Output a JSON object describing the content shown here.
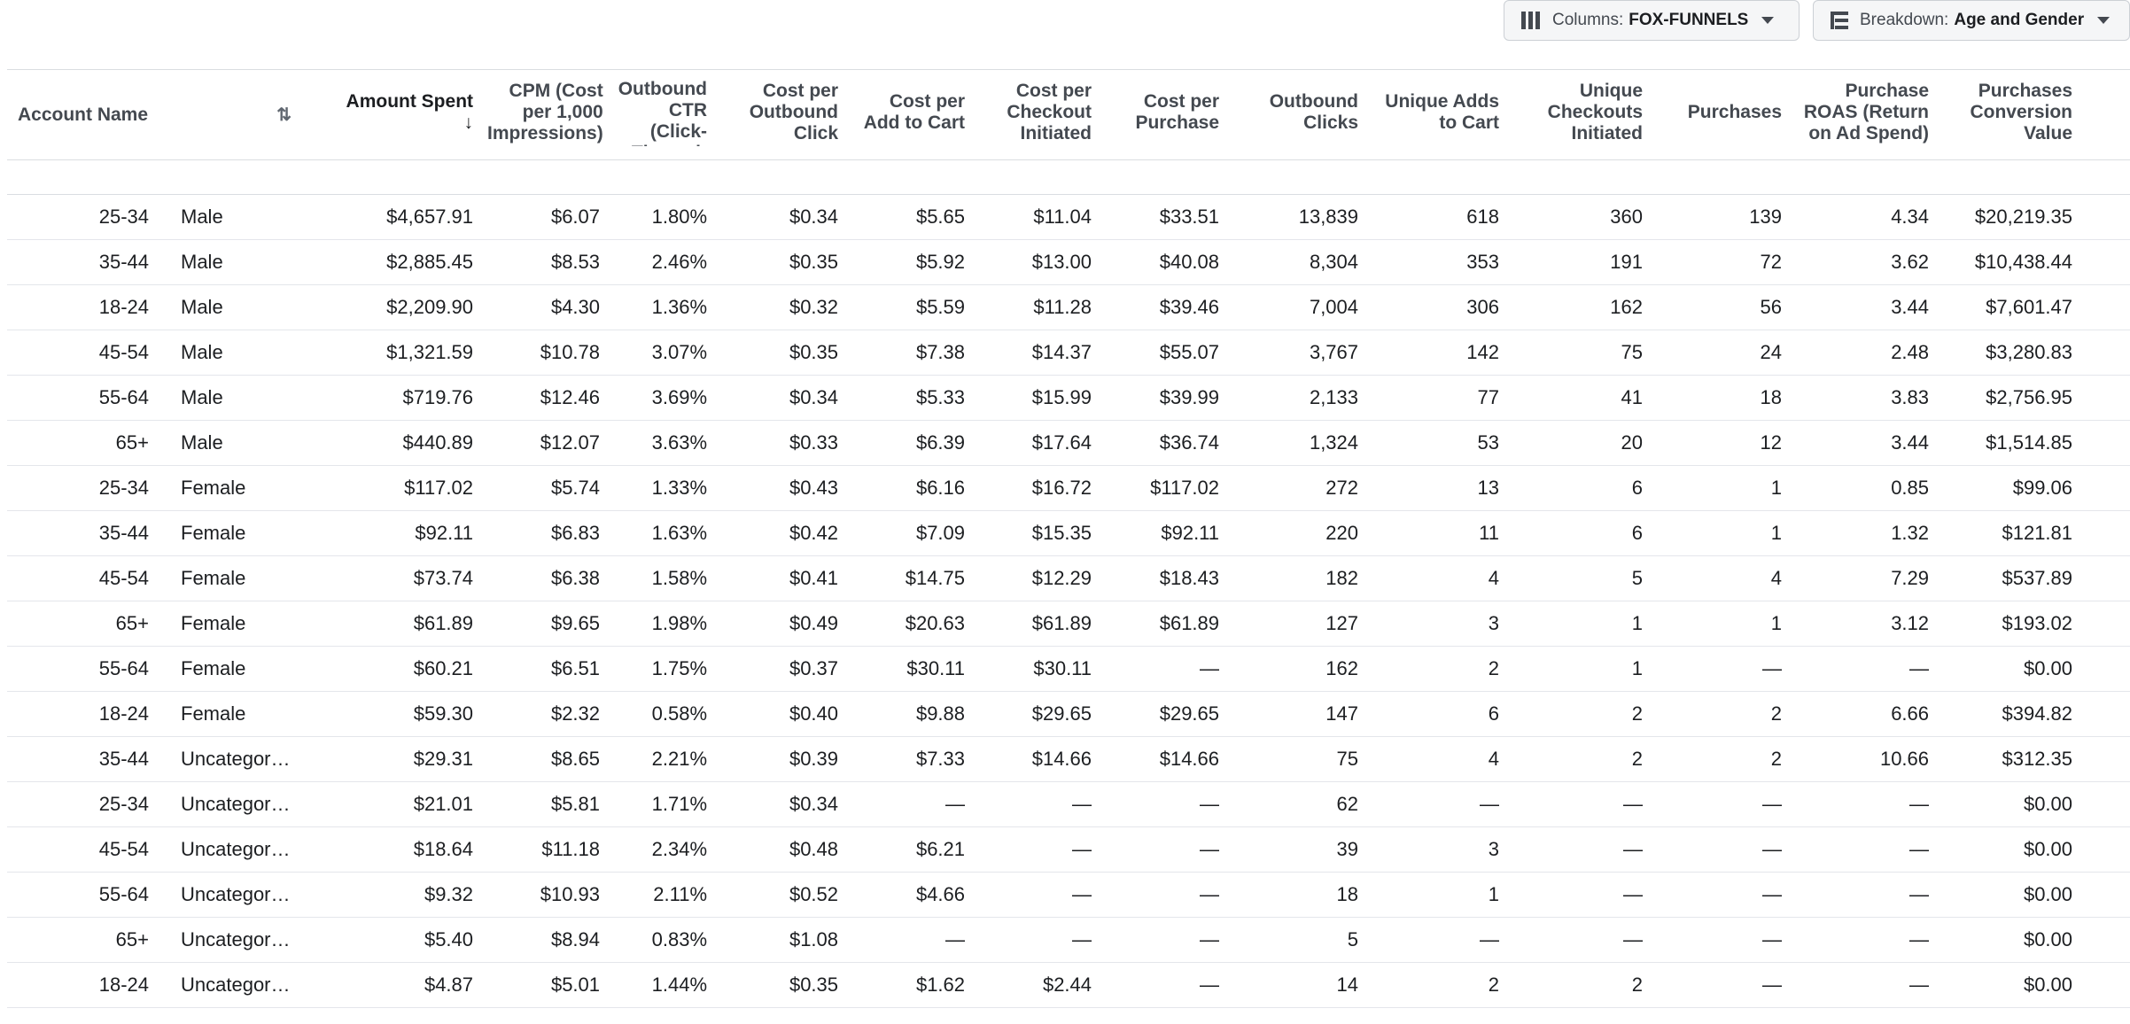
{
  "toolbar": {
    "columns_prefix": "Columns:",
    "columns_value": "FOX-FUNNELS",
    "breakdown_prefix": "Breakdown:",
    "breakdown_value": "Age and Gender",
    "columns_icon": "columns-icon",
    "breakdown_icon": "breakdown-icon",
    "caret_icon": "caret-down-icon"
  },
  "table": {
    "headers": {
      "account_name": "Account Name",
      "amount_spent": "Amount Spent",
      "cpm": "CPM (Cost per 1,000 Impressions)",
      "ctr": "Outbound CTR (Click-Through Rate)",
      "cost_outbound": "Cost per Outbound Click",
      "cost_add_cart": "Cost per Add to Cart",
      "cost_checkout": "Cost per Checkout Initiated",
      "cost_purchase": "Cost per Purchase",
      "outbound_clicks": "Outbound Clicks",
      "unique_adds": "Unique Adds to Cart",
      "unique_checkouts": "Unique Checkouts Initiated",
      "purchases": "Purchases",
      "roas": "Purchase ROAS (Return on Ad Spend)",
      "conversion_value": "Purchases Conversion Value"
    },
    "sort_icon": "arrow-down-icon",
    "sort_toggle_icon": "sort-toggle-icon",
    "rows": [
      [
        "25-34",
        "Male",
        "$4,657.91",
        "$6.07",
        "1.80%",
        "$0.34",
        "$5.65",
        "$11.04",
        "$33.51",
        "13,839",
        "618",
        "360",
        "139",
        "4.34",
        "$20,219.35"
      ],
      [
        "35-44",
        "Male",
        "$2,885.45",
        "$8.53",
        "2.46%",
        "$0.35",
        "$5.92",
        "$13.00",
        "$40.08",
        "8,304",
        "353",
        "191",
        "72",
        "3.62",
        "$10,438.44"
      ],
      [
        "18-24",
        "Male",
        "$2,209.90",
        "$4.30",
        "1.36%",
        "$0.32",
        "$5.59",
        "$11.28",
        "$39.46",
        "7,004",
        "306",
        "162",
        "56",
        "3.44",
        "$7,601.47"
      ],
      [
        "45-54",
        "Male",
        "$1,321.59",
        "$10.78",
        "3.07%",
        "$0.35",
        "$7.38",
        "$14.37",
        "$55.07",
        "3,767",
        "142",
        "75",
        "24",
        "2.48",
        "$3,280.83"
      ],
      [
        "55-64",
        "Male",
        "$719.76",
        "$12.46",
        "3.69%",
        "$0.34",
        "$5.33",
        "$15.99",
        "$39.99",
        "2,133",
        "77",
        "41",
        "18",
        "3.83",
        "$2,756.95"
      ],
      [
        "65+",
        "Male",
        "$440.89",
        "$12.07",
        "3.63%",
        "$0.33",
        "$6.39",
        "$17.64",
        "$36.74",
        "1,324",
        "53",
        "20",
        "12",
        "3.44",
        "$1,514.85"
      ],
      [
        "25-34",
        "Female",
        "$117.02",
        "$5.74",
        "1.33%",
        "$0.43",
        "$6.16",
        "$16.72",
        "$117.02",
        "272",
        "13",
        "6",
        "1",
        "0.85",
        "$99.06"
      ],
      [
        "35-44",
        "Female",
        "$92.11",
        "$6.83",
        "1.63%",
        "$0.42",
        "$7.09",
        "$15.35",
        "$92.11",
        "220",
        "11",
        "6",
        "1",
        "1.32",
        "$121.81"
      ],
      [
        "45-54",
        "Female",
        "$73.74",
        "$6.38",
        "1.58%",
        "$0.41",
        "$14.75",
        "$12.29",
        "$18.43",
        "182",
        "4",
        "5",
        "4",
        "7.29",
        "$537.89"
      ],
      [
        "65+",
        "Female",
        "$61.89",
        "$9.65",
        "1.98%",
        "$0.49",
        "$20.63",
        "$61.89",
        "$61.89",
        "127",
        "3",
        "1",
        "1",
        "3.12",
        "$193.02"
      ],
      [
        "55-64",
        "Female",
        "$60.21",
        "$6.51",
        "1.75%",
        "$0.37",
        "$30.11",
        "$30.11",
        "—",
        "162",
        "2",
        "1",
        "—",
        "—",
        "$0.00"
      ],
      [
        "18-24",
        "Female",
        "$59.30",
        "$2.32",
        "0.58%",
        "$0.40",
        "$9.88",
        "$29.65",
        "$29.65",
        "147",
        "6",
        "2",
        "2",
        "6.66",
        "$394.82"
      ],
      [
        "35-44",
        "Uncategorized",
        "$29.31",
        "$8.65",
        "2.21%",
        "$0.39",
        "$7.33",
        "$14.66",
        "$14.66",
        "75",
        "4",
        "2",
        "2",
        "10.66",
        "$312.35"
      ],
      [
        "25-34",
        "Uncategorized",
        "$21.01",
        "$5.81",
        "1.71%",
        "$0.34",
        "—",
        "—",
        "—",
        "62",
        "—",
        "—",
        "—",
        "—",
        "$0.00"
      ],
      [
        "45-54",
        "Uncategorized",
        "$18.64",
        "$11.18",
        "2.34%",
        "$0.48",
        "$6.21",
        "—",
        "—",
        "39",
        "3",
        "—",
        "—",
        "—",
        "$0.00"
      ],
      [
        "55-64",
        "Uncategorized",
        "$9.32",
        "$10.93",
        "2.11%",
        "$0.52",
        "$4.66",
        "—",
        "—",
        "18",
        "1",
        "—",
        "—",
        "—",
        "$0.00"
      ],
      [
        "65+",
        "Uncategorized",
        "$5.40",
        "$8.94",
        "0.83%",
        "$1.08",
        "—",
        "—",
        "—",
        "5",
        "—",
        "—",
        "—",
        "—",
        "$0.00"
      ],
      [
        "18-24",
        "Uncategorized",
        "$4.87",
        "$5.01",
        "1.44%",
        "$0.35",
        "$1.62",
        "$2.44",
        "—",
        "14",
        "2",
        "2",
        "—",
        "—",
        "$0.00"
      ]
    ]
  }
}
